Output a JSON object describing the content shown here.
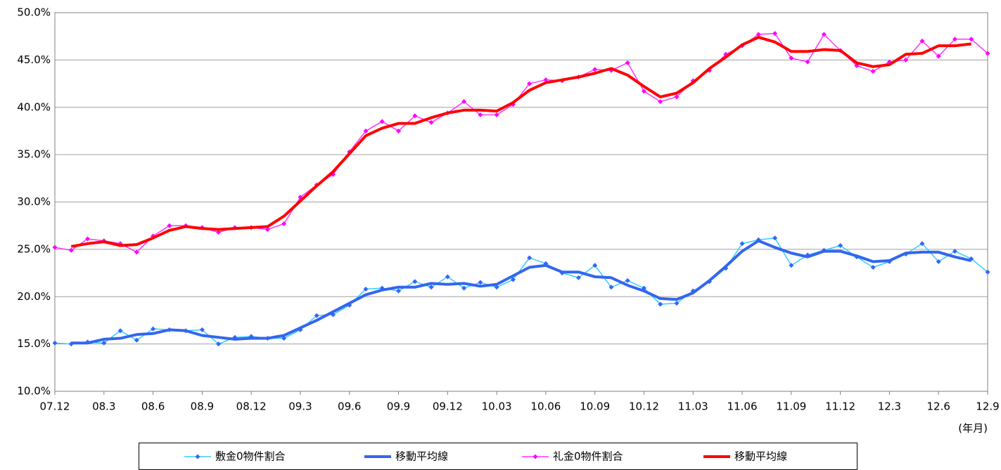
{
  "chart_data": {
    "type": "line",
    "categories": [
      "07.12",
      null,
      null,
      "08.3",
      null,
      null,
      "08.6",
      null,
      null,
      "08.9",
      null,
      null,
      "08.12",
      null,
      null,
      "09.3",
      null,
      null,
      "09.6",
      null,
      null,
      "09.9",
      null,
      null,
      "09.12",
      null,
      null,
      "10.03",
      null,
      null,
      "10.06",
      null,
      null,
      "10.09",
      null,
      null,
      "10.12",
      null,
      null,
      "11.03",
      null,
      null,
      "11.06",
      null,
      null,
      "11.09",
      null,
      null,
      "11.12",
      null,
      null,
      "12.3",
      null,
      null,
      "12.6",
      null,
      null,
      "12.9"
    ],
    "x_unit": "(年月)",
    "series": [
      {
        "name": "敷金0物件割合",
        "color": "#33ccff",
        "marker": "diamond",
        "marker_color": "#3366ff",
        "width": 1.5,
        "values": [
          15.1,
          15.0,
          15.2,
          15.1,
          16.4,
          15.4,
          16.6,
          16.5,
          16.4,
          16.5,
          15.0,
          15.7,
          15.8,
          15.6,
          15.6,
          16.5,
          18.0,
          18.1,
          19.1,
          20.8,
          20.9,
          20.6,
          21.6,
          21.0,
          22.1,
          20.9,
          21.5,
          21.0,
          21.8,
          24.1,
          23.5,
          22.5,
          22.0,
          23.3,
          21.0,
          21.7,
          20.9,
          19.2,
          19.3,
          20.6,
          21.6,
          23.0,
          25.6,
          26.0,
          26.2,
          23.3,
          24.4,
          24.9,
          25.4,
          24.2,
          23.1,
          23.7,
          24.5,
          25.6,
          23.7,
          24.8,
          24.0,
          22.6
        ]
      },
      {
        "name": "移動平均線",
        "color": "#3366ee",
        "width": 4,
        "values": [
          null,
          15.1,
          15.1,
          15.5,
          15.6,
          16.0,
          16.1,
          16.5,
          16.4,
          15.9,
          15.7,
          15.5,
          15.6,
          15.6,
          15.9,
          16.7,
          17.5,
          18.4,
          19.3,
          20.2,
          20.7,
          21.0,
          21.0,
          21.4,
          21.3,
          21.4,
          21.1,
          21.3,
          22.2,
          23.1,
          23.3,
          22.6,
          22.6,
          22.1,
          22.0,
          21.2,
          20.6,
          19.8,
          19.7,
          20.4,
          21.7,
          23.2,
          24.8,
          25.9,
          25.2,
          24.6,
          24.2,
          24.8,
          24.8,
          24.3,
          23.7,
          23.8,
          24.6,
          24.7,
          24.7,
          24.2,
          23.8,
          null
        ]
      },
      {
        "name": "礼金0物件割合",
        "color": "#ff33ff",
        "marker": "diamond",
        "marker_color": "#ff00ff",
        "width": 1.5,
        "values": [
          25.2,
          24.9,
          26.1,
          25.9,
          25.6,
          24.7,
          26.4,
          27.5,
          27.5,
          27.3,
          26.8,
          27.3,
          27.3,
          27.1,
          27.7,
          30.5,
          31.8,
          32.9,
          35.3,
          37.5,
          38.5,
          37.5,
          39.1,
          38.4,
          39.4,
          40.6,
          39.2,
          39.2,
          40.3,
          42.5,
          42.9,
          42.8,
          43.2,
          44.0,
          43.9,
          44.7,
          41.7,
          40.6,
          41.1,
          42.8,
          43.9,
          45.6,
          46.5,
          47.7,
          47.8,
          45.2,
          44.8,
          47.7,
          46.0,
          44.4,
          43.8,
          44.8,
          45.0,
          47.0,
          45.4,
          47.2,
          47.2,
          45.7
        ]
      },
      {
        "name": "移動平均線",
        "color": "#ff0000",
        "width": 4,
        "values": [
          null,
          25.3,
          25.6,
          25.8,
          25.4,
          25.5,
          26.2,
          27.0,
          27.4,
          27.2,
          27.1,
          27.2,
          27.3,
          27.4,
          28.5,
          30.1,
          31.7,
          33.2,
          35.1,
          37.0,
          37.8,
          38.3,
          38.3,
          38.9,
          39.4,
          39.7,
          39.7,
          39.6,
          40.5,
          41.8,
          42.6,
          42.9,
          43.2,
          43.6,
          44.1,
          43.4,
          42.2,
          41.1,
          41.5,
          42.6,
          44.1,
          45.3,
          46.6,
          47.4,
          46.9,
          45.9,
          45.9,
          46.1,
          46.0,
          44.7,
          44.3,
          44.5,
          45.6,
          45.7,
          46.5,
          46.5,
          46.7,
          null
        ]
      }
    ],
    "ylim": [
      10,
      50
    ],
    "yticks": [
      {
        "value": 10,
        "label": "10.0%"
      },
      {
        "value": 15,
        "label": "15.0%"
      },
      {
        "value": 20,
        "label": "20.0%"
      },
      {
        "value": 25,
        "label": "25.0%"
      },
      {
        "value": 30,
        "label": "30.0%"
      },
      {
        "value": 35,
        "label": "35.0%"
      },
      {
        "value": 40,
        "label": "40.0%"
      },
      {
        "value": 45,
        "label": "45.0%"
      },
      {
        "value": 50,
        "label": "50.0%"
      }
    ],
    "grid": true,
    "legend": "bottom"
  }
}
